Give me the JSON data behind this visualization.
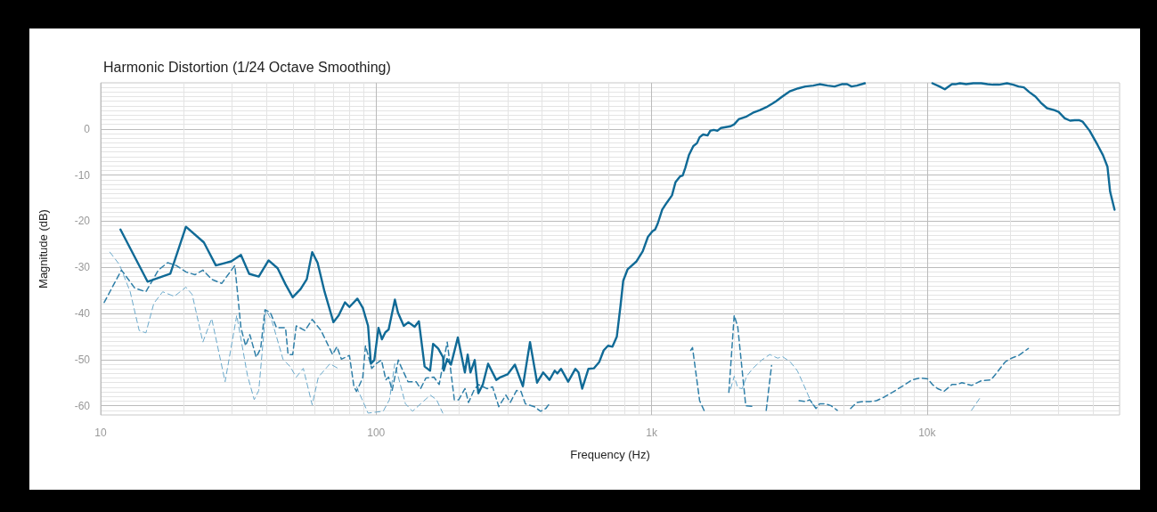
{
  "chart_data": {
    "type": "line",
    "title": "Harmonic Distortion (1/24 Octave Smoothing)",
    "xlabel": "Frequency (Hz)",
    "ylabel": "Magnitude (dB)",
    "log": "x",
    "grid": true,
    "xlim": [
      10,
      50000
    ],
    "ylim": [
      -62,
      10
    ],
    "xticks": [
      10,
      100,
      {
        "value": 1000,
        "label": "1k"
      },
      {
        "value": 10000,
        "label": "10k"
      }
    ],
    "yticks": [
      -60,
      -50,
      -40,
      -30,
      -20,
      -10,
      0
    ],
    "series": [
      {
        "color": "#106a96",
        "line_style": "solid",
        "x": [
          11.8,
          14.8,
          17.9,
          20.4,
          23.7,
          26.2,
          29.8,
          32.3,
          34.6,
          37.5,
          40.7,
          43.9,
          46.9,
          49.8,
          53.2,
          56,
          58.6,
          61.3,
          65,
          70,
          73.2,
          77.1,
          80,
          85.5,
          89.5,
          93.5,
          95.7,
          98.5,
          102,
          105,
          108,
          111,
          117,
          120,
          126,
          131,
          138,
          143,
          150,
          157,
          161,
          168,
          175,
          176,
          181,
          187,
          198,
          210,
          215,
          220,
          228,
          235,
          244,
          255,
          273,
          283,
          300,
          319,
          341,
          362,
          384,
          404,
          426,
          445,
          455,
          469,
          498,
          529,
          543,
          560,
          590,
          617,
          646,
          670,
          695,
          721,
          748,
          771,
          789,
          819,
          882,
          929,
          970,
          1007,
          1030,
          1053,
          1093,
          1135,
          1186,
          1222,
          1268,
          1297,
          1326,
          1366,
          1418,
          1461,
          1494,
          1539,
          1597,
          1633,
          1682,
          1733,
          1785,
          1937,
          1995,
          2071,
          2165,
          2214,
          2332,
          2475,
          2607,
          2747,
          2829,
          2980,
          3186,
          3407,
          3615,
          3865,
          4071,
          4353,
          4618,
          4900,
          5126,
          5318,
          5561,
          5945,
          6357,
          6847,
          7713,
          8309,
          8683,
          9926,
          10457,
          11096,
          11601,
          12313,
          12683,
          13163,
          13868,
          14720,
          15733,
          16571,
          17329,
          18253,
          19509,
          20549,
          21487,
          22466,
          23496,
          24752,
          25882,
          27263,
          28930,
          30022,
          31623,
          33066,
          34317,
          35614,
          36687,
          38930,
          41628,
          43530,
          45179,
          46196,
          47940
        ],
        "values": [
          -21.8,
          -33.1,
          -31.4,
          -21.2,
          -24.6,
          -29.6,
          -28.7,
          -27.3,
          -31.4,
          -32,
          -28.5,
          -30.2,
          -33.7,
          -36.5,
          -34.7,
          -32.6,
          -26.7,
          -29,
          -35.3,
          -41.9,
          -40.4,
          -37.6,
          -38.6,
          -36.8,
          -38.8,
          -42.7,
          -50.9,
          -50.1,
          -43.1,
          -45.6,
          -44.1,
          -43.5,
          -37,
          -39.8,
          -42.7,
          -41.9,
          -42.9,
          -41.7,
          -51.5,
          -52.4,
          -46.6,
          -47.6,
          -49.5,
          -52.4,
          -49.9,
          -51.1,
          -45.2,
          -52.8,
          -48.9,
          -52.8,
          -50.1,
          -57.3,
          -55.4,
          -50.9,
          -54.4,
          -53.8,
          -53.2,
          -51.1,
          -55.8,
          -46.2,
          -55,
          -52.8,
          -54.4,
          -52.4,
          -53,
          -52,
          -54.8,
          -52,
          -52.8,
          -56.3,
          -52,
          -51.9,
          -50.5,
          -48,
          -47,
          -47.2,
          -45,
          -38.4,
          -32.9,
          -30.4,
          -28.7,
          -26.5,
          -23.4,
          -22.2,
          -21.8,
          -20.5,
          -17.5,
          -16,
          -14.4,
          -11.5,
          -10.3,
          -10.1,
          -8.4,
          -5.7,
          -3.7,
          -3.1,
          -1.8,
          -1.2,
          -1.4,
          -0.4,
          -0.2,
          -0.4,
          0.2,
          0.6,
          1,
          2.1,
          2.5,
          2.7,
          3.5,
          4.1,
          4.7,
          5.5,
          6,
          7,
          8.2,
          8.8,
          9.2,
          9.4,
          9.7,
          9.4,
          9.2,
          9.7,
          9.7,
          9.2,
          9.4,
          9.9,
          null,
          null,
          null,
          null,
          null,
          null,
          9.9,
          9.2,
          8.6,
          9.7,
          9.7,
          9.9,
          9.7,
          9.9,
          9.9,
          9.7,
          9.6,
          9.6,
          9.9,
          9.6,
          9.2,
          9,
          8,
          7,
          5.7,
          4.5,
          4.1,
          3.7,
          2.3,
          1.8,
          1.9,
          1.9,
          1.6,
          -0.4,
          -3.5,
          -5.7,
          -8.2,
          -13.6,
          -17.5
        ]
      },
      {
        "color": "#2f7fa8",
        "line_style": "dashed",
        "x": [
          10.3,
          11.9,
          13.3,
          14.6,
          16.2,
          17.5,
          18.8,
          20.4,
          22,
          23.5,
          25.3,
          27.5,
          30.7,
          31.6,
          32.3,
          33.6,
          34.8,
          36.7,
          38.1,
          39.5,
          41.3,
          43.5,
          46.9,
          47.9,
          49.8,
          51.3,
          55.2,
          58.6,
          63.1,
          69.5,
          72.1,
          74.8,
          80,
          83.1,
          84.9,
          89.4,
          91.5,
          96.4,
          100,
          104.6,
          108.5,
          111,
          114.3,
          120.4,
          123.1,
          130.6,
          139.7,
          145,
          151.6,
          162.1,
          169.4,
          181.2,
          192.3,
          199.5,
          210.2,
          216.5,
          226.4,
          235,
          253.1,
          264.7,
          278.8,
          295.8,
          306.9,
          323.4,
          335.6,
          348.3,
          375.2,
          395.4,
          413.2,
          428.8,
          441.8,
          800,
          1297,
          1387,
          1408,
          1494,
          1561,
          1621,
          1700,
          1785,
          1840,
          1908,
          1995,
          2055,
          2197,
          2367,
          2512,
          2607,
          2726,
          2872,
          3100,
          3331,
          3432,
          3615,
          3751,
          3953,
          4071,
          4289,
          4483,
          4723,
          4937,
          5280,
          5561,
          5858,
          6170,
          6548,
          6900,
          7484,
          8121,
          8814,
          9424,
          10074,
          10457,
          10932,
          11515,
          12313,
          12871,
          13374,
          14497,
          15733,
          17071,
          17715,
          19220,
          20256,
          21487,
          23322
        ],
        "values": [
          -37.6,
          -30.6,
          -34.5,
          -35.3,
          -30.6,
          -29,
          -29.6,
          -31,
          -31.6,
          -30.6,
          -32.6,
          -33.5,
          -29.6,
          -37.2,
          -43.1,
          -47,
          -44.6,
          -49.5,
          -47.6,
          -39.2,
          -39.8,
          -43.1,
          -43.1,
          -48.9,
          -48.9,
          -42.7,
          -43.7,
          -41.3,
          -43.7,
          -48.9,
          -47.2,
          -49.9,
          -49.1,
          -55.9,
          -56.9,
          -54,
          -47,
          -51.9,
          -50.9,
          -50.1,
          -54.4,
          -53.8,
          -56.7,
          -50.1,
          -51.5,
          -54.8,
          -54.8,
          -56.3,
          -54,
          -53.8,
          -55.4,
          -46.2,
          -58.7,
          -58.7,
          -56.3,
          -59.3,
          -56.7,
          -55.4,
          -56.3,
          -55.9,
          -60.2,
          -57.7,
          -59.3,
          -56.7,
          -56.9,
          -59.6,
          -60.2,
          -61.2,
          -60.6,
          -59.3,
          null,
          null,
          null,
          -48,
          -47.4,
          -58.9,
          -61.4,
          null,
          null,
          null,
          null,
          -57.1,
          -40.4,
          -42.9,
          -60,
          -60.2,
          null,
          -61,
          -51.3,
          null,
          null,
          null,
          -58.9,
          -59.1,
          -58.7,
          -60.6,
          -59.6,
          -59.6,
          -60,
          -61,
          null,
          -60.6,
          -59.3,
          -59.1,
          -59.1,
          -58.9,
          -58.3,
          -57.1,
          -55.8,
          -54.4,
          -54,
          -54.2,
          -55.4,
          -56.3,
          -56.9,
          -55.4,
          -55.4,
          -55,
          -55.6,
          -54.6,
          -54.4,
          -53.2,
          -50.5,
          -49.7,
          -49.1,
          -47.6
        ]
      },
      {
        "color": "#6aa9cb",
        "line_style": "dashed",
        "x": [
          10.8,
          11.7,
          12.8,
          13.8,
          14.6,
          15.6,
          16.8,
          18.5,
          20.4,
          21.5,
          23.5,
          25.3,
          28.3,
          31.2,
          34.1,
          36.1,
          37.5,
          39.8,
          41.9,
          45.9,
          48.7,
          51.3,
          54.4,
          58.6,
          61.7,
          68,
          73.2,
          77.1,
          80,
          83.1,
          84.9,
          93.5,
          106.1,
          111.8,
          116.9,
          127.8,
          135.6,
          145,
          157.3,
          165.7,
          174.6,
          178.5,
          800,
          1880,
          1937,
          1995,
          2055,
          2133,
          2214,
          2332,
          2512,
          2685,
          2872,
          2980,
          3186,
          3381,
          3561,
          3751,
          3923,
          4011,
          8000,
          14497,
          15733
        ],
        "values": [
          -26.7,
          -29.4,
          -35.3,
          -43.7,
          -44.2,
          -37.8,
          -35.3,
          -36.3,
          -34.3,
          -35.9,
          -46.2,
          -41.1,
          -54.8,
          -40.4,
          -53.4,
          -58.7,
          -56.7,
          -39.2,
          -41.7,
          -49.9,
          -51.5,
          -53.8,
          -51.9,
          -59.8,
          -53.8,
          -50.9,
          -52,
          null,
          null,
          null,
          -55.9,
          -61.6,
          -61.2,
          -58.7,
          -50.9,
          -59.6,
          -61.2,
          -59.6,
          -57.7,
          -58.7,
          -61.6,
          null,
          null,
          null,
          -56.3,
          -53.6,
          -56.1,
          -56.3,
          -53.6,
          -51.9,
          -50.1,
          -48.9,
          -49.7,
          -49.3,
          -50.5,
          -52.4,
          -55.4,
          -58.5,
          -60.6,
          null,
          null,
          -61,
          -57.9
        ]
      }
    ]
  }
}
